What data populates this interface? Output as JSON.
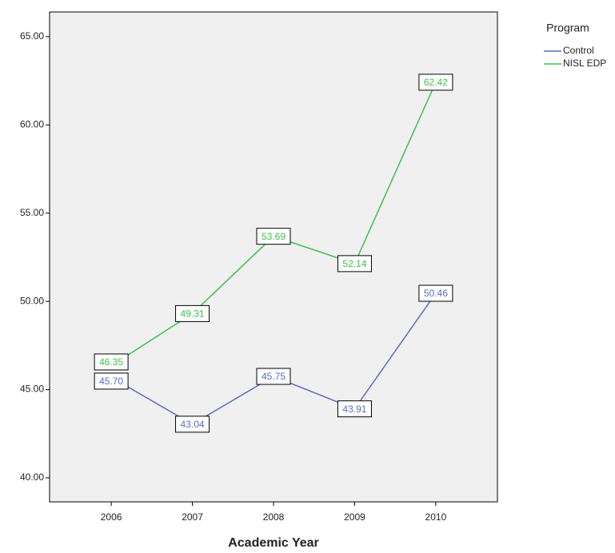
{
  "chart_data": {
    "type": "line",
    "x_label": "Academic Year",
    "categories": [
      "2006",
      "2007",
      "2008",
      "2009",
      "2010"
    ],
    "series": [
      {
        "name": "Control",
        "color": "#5b6dbf",
        "values": [
          45.7,
          43.04,
          45.75,
          43.91,
          50.46
        ],
        "value_labels": [
          "45.70",
          "43.04",
          "45.75",
          "43.91",
          "50.46"
        ]
      },
      {
        "name": "NISL EDP",
        "color": "#3fbf4f",
        "values": [
          46.35,
          49.31,
          53.69,
          52.14,
          62.42
        ],
        "value_labels": [
          "46.35",
          "49.31",
          "53.69",
          "52.14",
          "62.42"
        ]
      }
    ],
    "ylim": [
      38.64,
      66.4
    ],
    "yticks": [
      {
        "value": 40,
        "label": "40.00"
      },
      {
        "value": 45,
        "label": "45.00"
      },
      {
        "value": 50,
        "label": "50.00"
      },
      {
        "value": 55,
        "label": "55.00"
      },
      {
        "value": 60,
        "label": "60.00"
      },
      {
        "value": 65,
        "label": "65.00"
      }
    ],
    "legend_title": "Program",
    "legend": "right",
    "plot_background": "#f0f0f0"
  }
}
